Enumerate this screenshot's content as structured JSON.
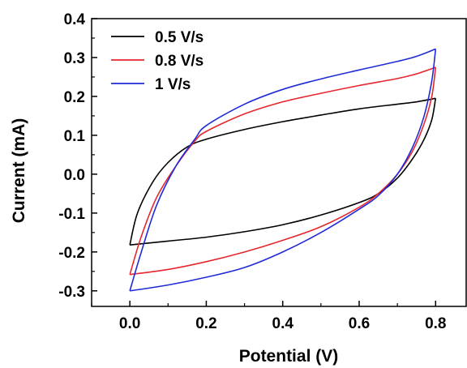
{
  "chart_data": {
    "type": "line",
    "xlabel": "Potential (V)",
    "ylabel": "Current (mA)",
    "xlim": [
      -0.1,
      0.88
    ],
    "ylim": [
      -0.34,
      0.4
    ],
    "x_ticks": [
      "0.0",
      "0.2",
      "0.4",
      "0.6",
      "0.8"
    ],
    "x_tick_values": [
      0.0,
      0.2,
      0.4,
      0.6,
      0.8
    ],
    "y_ticks": [
      "0.4",
      "0.3",
      "0.2",
      "0.1",
      "0.0",
      "-0.1",
      "-0.2",
      "-0.3"
    ],
    "y_tick_values": [
      0.4,
      0.3,
      0.2,
      0.1,
      0.0,
      -0.1,
      -0.2,
      -0.3
    ],
    "legend_position": "top-left",
    "grid": false,
    "series": [
      {
        "name": "0.5 V/s",
        "color": "#000000",
        "forward": [
          [
            0.0,
            -0.182
          ],
          [
            0.02,
            -0.1
          ],
          [
            0.06,
            -0.02
          ],
          [
            0.1,
            0.03
          ],
          [
            0.15,
            0.07
          ],
          [
            0.2,
            0.09
          ],
          [
            0.3,
            0.115
          ],
          [
            0.4,
            0.135
          ],
          [
            0.5,
            0.152
          ],
          [
            0.6,
            0.168
          ],
          [
            0.7,
            0.18
          ],
          [
            0.75,
            0.186
          ],
          [
            0.8,
            0.195
          ]
        ],
        "reverse": [
          [
            0.8,
            0.195
          ],
          [
            0.79,
            0.14
          ],
          [
            0.77,
            0.09
          ],
          [
            0.74,
            0.04
          ],
          [
            0.7,
            -0.01
          ],
          [
            0.65,
            -0.05
          ],
          [
            0.6,
            -0.073
          ],
          [
            0.5,
            -0.105
          ],
          [
            0.4,
            -0.13
          ],
          [
            0.3,
            -0.148
          ],
          [
            0.2,
            -0.162
          ],
          [
            0.1,
            -0.172
          ],
          [
            0.0,
            -0.182
          ]
        ]
      },
      {
        "name": "0.8 V/s",
        "color": "#e8262e",
        "forward": [
          [
            0.0,
            -0.258
          ],
          [
            0.03,
            -0.16
          ],
          [
            0.07,
            -0.06
          ],
          [
            0.12,
            0.02
          ],
          [
            0.17,
            0.085
          ],
          [
            0.2,
            0.11
          ],
          [
            0.3,
            0.155
          ],
          [
            0.4,
            0.186
          ],
          [
            0.5,
            0.208
          ],
          [
            0.6,
            0.228
          ],
          [
            0.7,
            0.246
          ],
          [
            0.75,
            0.258
          ],
          [
            0.8,
            0.275
          ]
        ],
        "reverse": [
          [
            0.8,
            0.275
          ],
          [
            0.79,
            0.2
          ],
          [
            0.77,
            0.13
          ],
          [
            0.74,
            0.06
          ],
          [
            0.7,
            0.0
          ],
          [
            0.65,
            -0.05
          ],
          [
            0.6,
            -0.085
          ],
          [
            0.5,
            -0.135
          ],
          [
            0.4,
            -0.17
          ],
          [
            0.3,
            -0.2
          ],
          [
            0.2,
            -0.225
          ],
          [
            0.1,
            -0.245
          ],
          [
            0.0,
            -0.258
          ]
        ]
      },
      {
        "name": "1 V/s",
        "color": "#1f2bd6",
        "forward": [
          [
            0.0,
            -0.3
          ],
          [
            0.03,
            -0.2
          ],
          [
            0.07,
            -0.08
          ],
          [
            0.12,
            0.02
          ],
          [
            0.17,
            0.09
          ],
          [
            0.2,
            0.125
          ],
          [
            0.3,
            0.18
          ],
          [
            0.4,
            0.218
          ],
          [
            0.5,
            0.245
          ],
          [
            0.6,
            0.268
          ],
          [
            0.7,
            0.29
          ],
          [
            0.75,
            0.303
          ],
          [
            0.8,
            0.322
          ]
        ],
        "reverse": [
          [
            0.8,
            0.322
          ],
          [
            0.79,
            0.24
          ],
          [
            0.77,
            0.15
          ],
          [
            0.74,
            0.07
          ],
          [
            0.7,
            0.0
          ],
          [
            0.65,
            -0.055
          ],
          [
            0.6,
            -0.09
          ],
          [
            0.5,
            -0.15
          ],
          [
            0.4,
            -0.2
          ],
          [
            0.3,
            -0.24
          ],
          [
            0.2,
            -0.265
          ],
          [
            0.1,
            -0.285
          ],
          [
            0.0,
            -0.3
          ]
        ]
      }
    ]
  }
}
